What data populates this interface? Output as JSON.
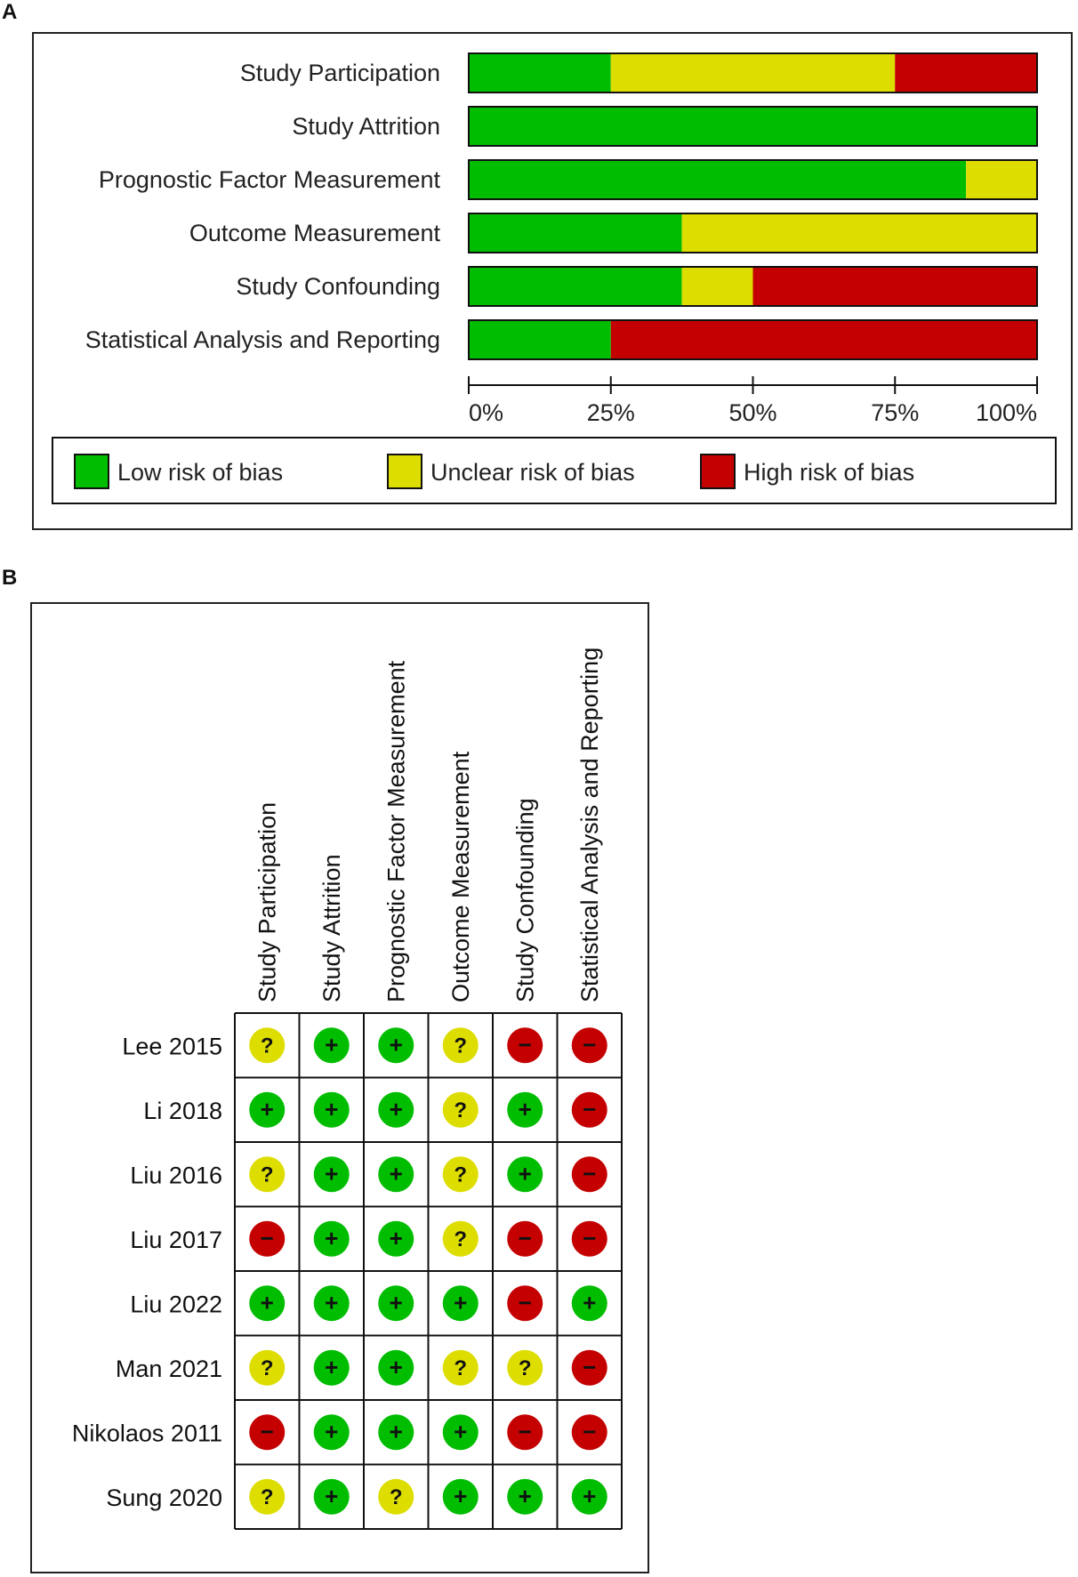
{
  "panel_a_label": "A",
  "panel_b_label": "B",
  "colors": {
    "low": "#00bd00",
    "unclear": "#dddd00",
    "high": "#c40000"
  },
  "chart_data": [
    {
      "type": "bar",
      "stacked": true,
      "orientation": "horizontal",
      "categories": [
        "Study Participation",
        "Study Attrition",
        "Prognostic Factor Measurement",
        "Outcome Measurement",
        "Study Confounding",
        "Statistical Analysis and Reporting"
      ],
      "series": [
        {
          "name": "Low risk of bias",
          "color": "#00bd00",
          "values": [
            25,
            100,
            87.5,
            37.5,
            37.5,
            25
          ]
        },
        {
          "name": "Unclear risk of bias",
          "color": "#dddd00",
          "values": [
            50,
            0,
            12.5,
            62.5,
            12.5,
            0
          ]
        },
        {
          "name": "High risk of bias",
          "color": "#c40000",
          "values": [
            25,
            0,
            0,
            0,
            50,
            75
          ]
        }
      ],
      "xlim": [
        0,
        100
      ],
      "x_ticks": [
        "0%",
        "25%",
        "50%",
        "75%",
        "100%"
      ],
      "legend_position": "bottom"
    },
    {
      "type": "table",
      "columns": [
        "Study Participation",
        "Study Attrition",
        "Prognostic Factor Measurement",
        "Outcome Measurement",
        "Study Confounding",
        "Statistical Analysis and Reporting"
      ],
      "rows": [
        {
          "study": "Lee 2015",
          "judgements": [
            "?",
            "+",
            "+",
            "?",
            "-",
            "-"
          ]
        },
        {
          "study": "Li 2018",
          "judgements": [
            "+",
            "+",
            "+",
            "?",
            "+",
            "-"
          ]
        },
        {
          "study": "Liu 2016",
          "judgements": [
            "?",
            "+",
            "+",
            "?",
            "+",
            "-"
          ]
        },
        {
          "study": "Liu 2017",
          "judgements": [
            "-",
            "+",
            "+",
            "?",
            "-",
            "-"
          ]
        },
        {
          "study": "Liu 2022",
          "judgements": [
            "+",
            "+",
            "+",
            "+",
            "-",
            "+"
          ]
        },
        {
          "study": "Man 2021",
          "judgements": [
            "?",
            "+",
            "+",
            "?",
            "?",
            "-"
          ]
        },
        {
          "study": "Nikolaos 2011",
          "judgements": [
            "-",
            "+",
            "+",
            "+",
            "-",
            "-"
          ]
        },
        {
          "study": "Sung 2020",
          "judgements": [
            "?",
            "+",
            "?",
            "+",
            "+",
            "+"
          ]
        }
      ]
    }
  ]
}
